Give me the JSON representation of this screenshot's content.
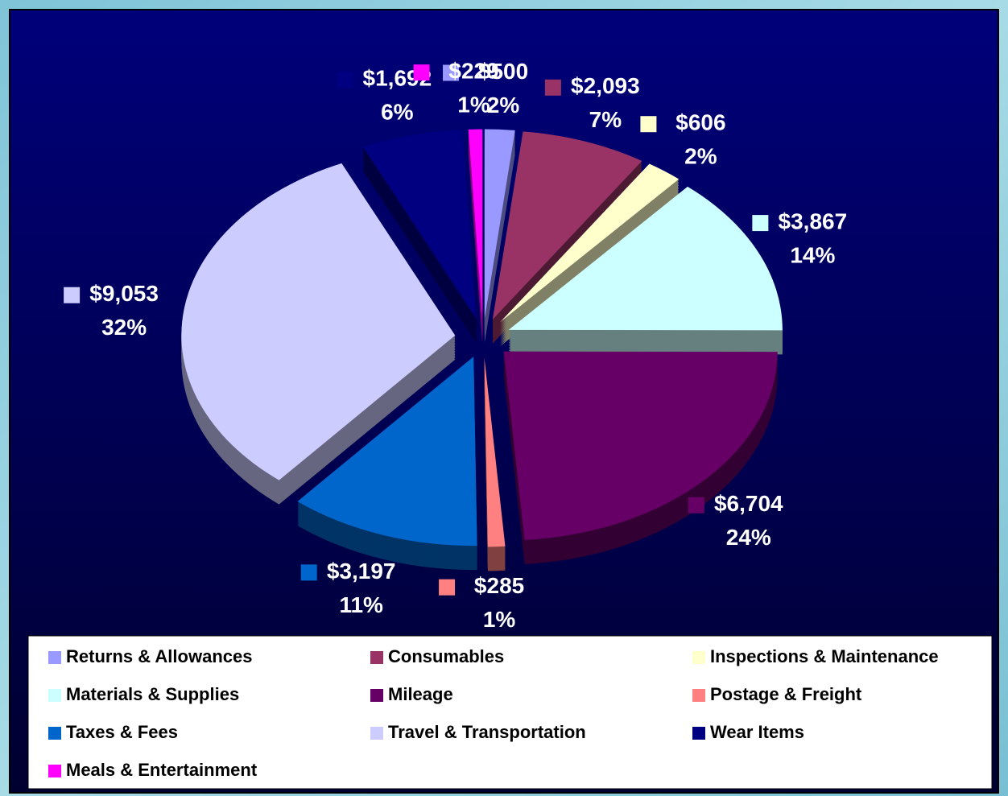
{
  "chart_data": {
    "type": "pie",
    "categories": [
      "Returns & Allowances",
      "Consumables",
      "Inspections & Maintenance",
      "Materials & Supplies",
      "Mileage",
      "Postage & Freight",
      "Taxes & Fees",
      "Travel & Transportation",
      "Wear Items",
      "Meals & Entertainment"
    ],
    "values": [
      500,
      2093,
      606,
      3867,
      6704,
      285,
      3197,
      9053,
      1692,
      229
    ],
    "value_labels": [
      "$500",
      "$2,093",
      "$606",
      "$3,867",
      "$6,704",
      "$285",
      "$3,197",
      "$9,053",
      "$1,692",
      "$229"
    ],
    "percents": [
      2,
      7,
      2,
      14,
      24,
      1,
      11,
      32,
      6,
      1
    ],
    "percent_labels": [
      "2%",
      "7%",
      "2%",
      "14%",
      "24%",
      "1%",
      "11%",
      "32%",
      "6%",
      "1%"
    ],
    "colors": [
      "#9999ff",
      "#993366",
      "#ffffcc",
      "#ccffff",
      "#660066",
      "#ff8080",
      "#0066cc",
      "#ccccff",
      "#000080",
      "#ff00ff"
    ],
    "legend": "bottom"
  }
}
